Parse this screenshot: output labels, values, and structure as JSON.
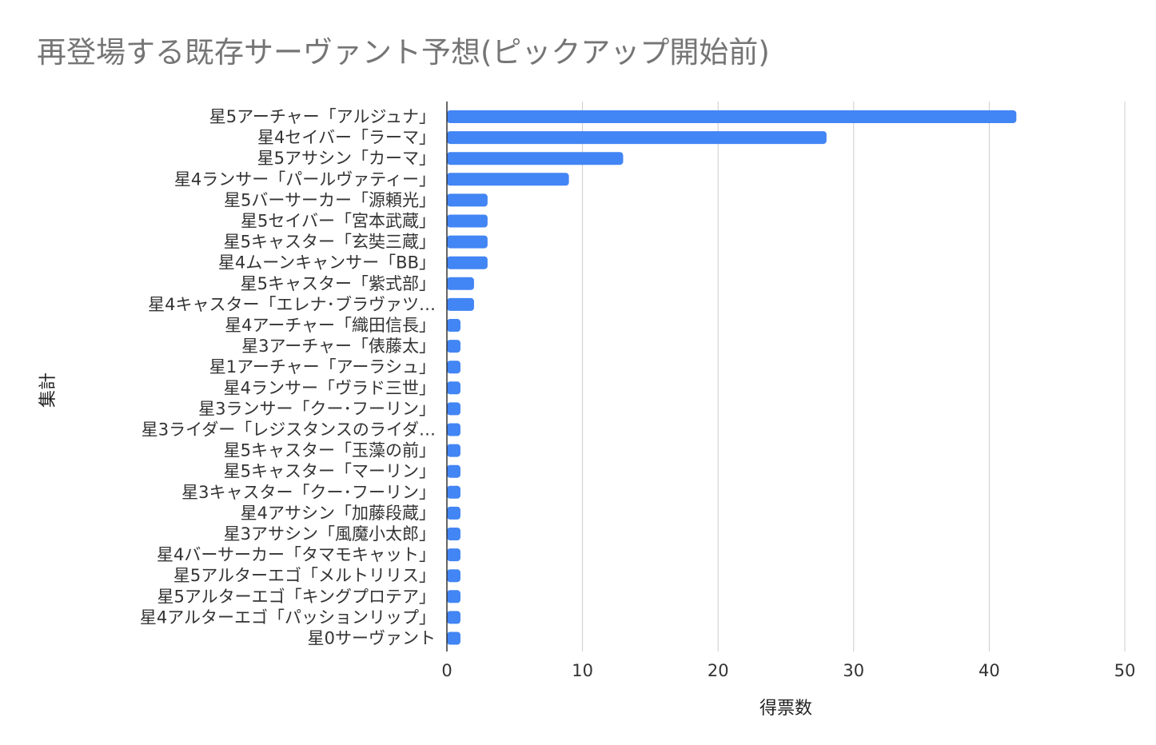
{
  "chart_data": {
    "type": "bar",
    "orientation": "horizontal",
    "title": "再登場する既存サーヴァント予想(ピックアップ開始前)",
    "xlabel": "得票数",
    "ylabel": "集計",
    "xlim": [
      0,
      50
    ],
    "xticks": [
      0,
      10,
      20,
      30,
      40,
      50
    ],
    "grid": true,
    "legend": "none",
    "color": "#4285f4",
    "categories": [
      "星5アーチャー「アルジュナ」",
      "星4セイバー「ラーマ」",
      "星5アサシン「カーマ」",
      "星4ランサー「パールヴァティー」",
      "星5バーサーカー「源頼光」",
      "星5セイバー「宮本武蔵」",
      "星5キャスター「玄奘三蔵」",
      "星4ムーンキャンサー「BB」",
      "星5キャスター「紫式部」",
      "星4キャスター「エレナ･ブラヴァツ…",
      "星4アーチャー「織田信長」",
      "星3アーチャー「俵藤太」",
      "星1アーチャー「アーラシュ」",
      "星4ランサー「ヴラド三世」",
      "星3ランサー「クー･フーリン」",
      "星3ライダー「レジスタンスのライダ…",
      "星5キャスター「玉藻の前」",
      "星5キャスター「マーリン」",
      "星3キャスター「クー･フーリン」",
      "星4アサシン「加藤段蔵」",
      "星3アサシン「風魔小太郎」",
      "星4バーサーカー「タマモキャット」",
      "星5アルターエゴ「メルトリリス」",
      "星5アルターエゴ「キングプロテア」",
      "星4アルターエゴ「パッションリップ」",
      "星0サーヴァント"
    ],
    "values": [
      42,
      28,
      13,
      9,
      3,
      3,
      3,
      3,
      2,
      2,
      1,
      1,
      1,
      1,
      1,
      1,
      1,
      1,
      1,
      1,
      1,
      1,
      1,
      1,
      1,
      1
    ]
  }
}
